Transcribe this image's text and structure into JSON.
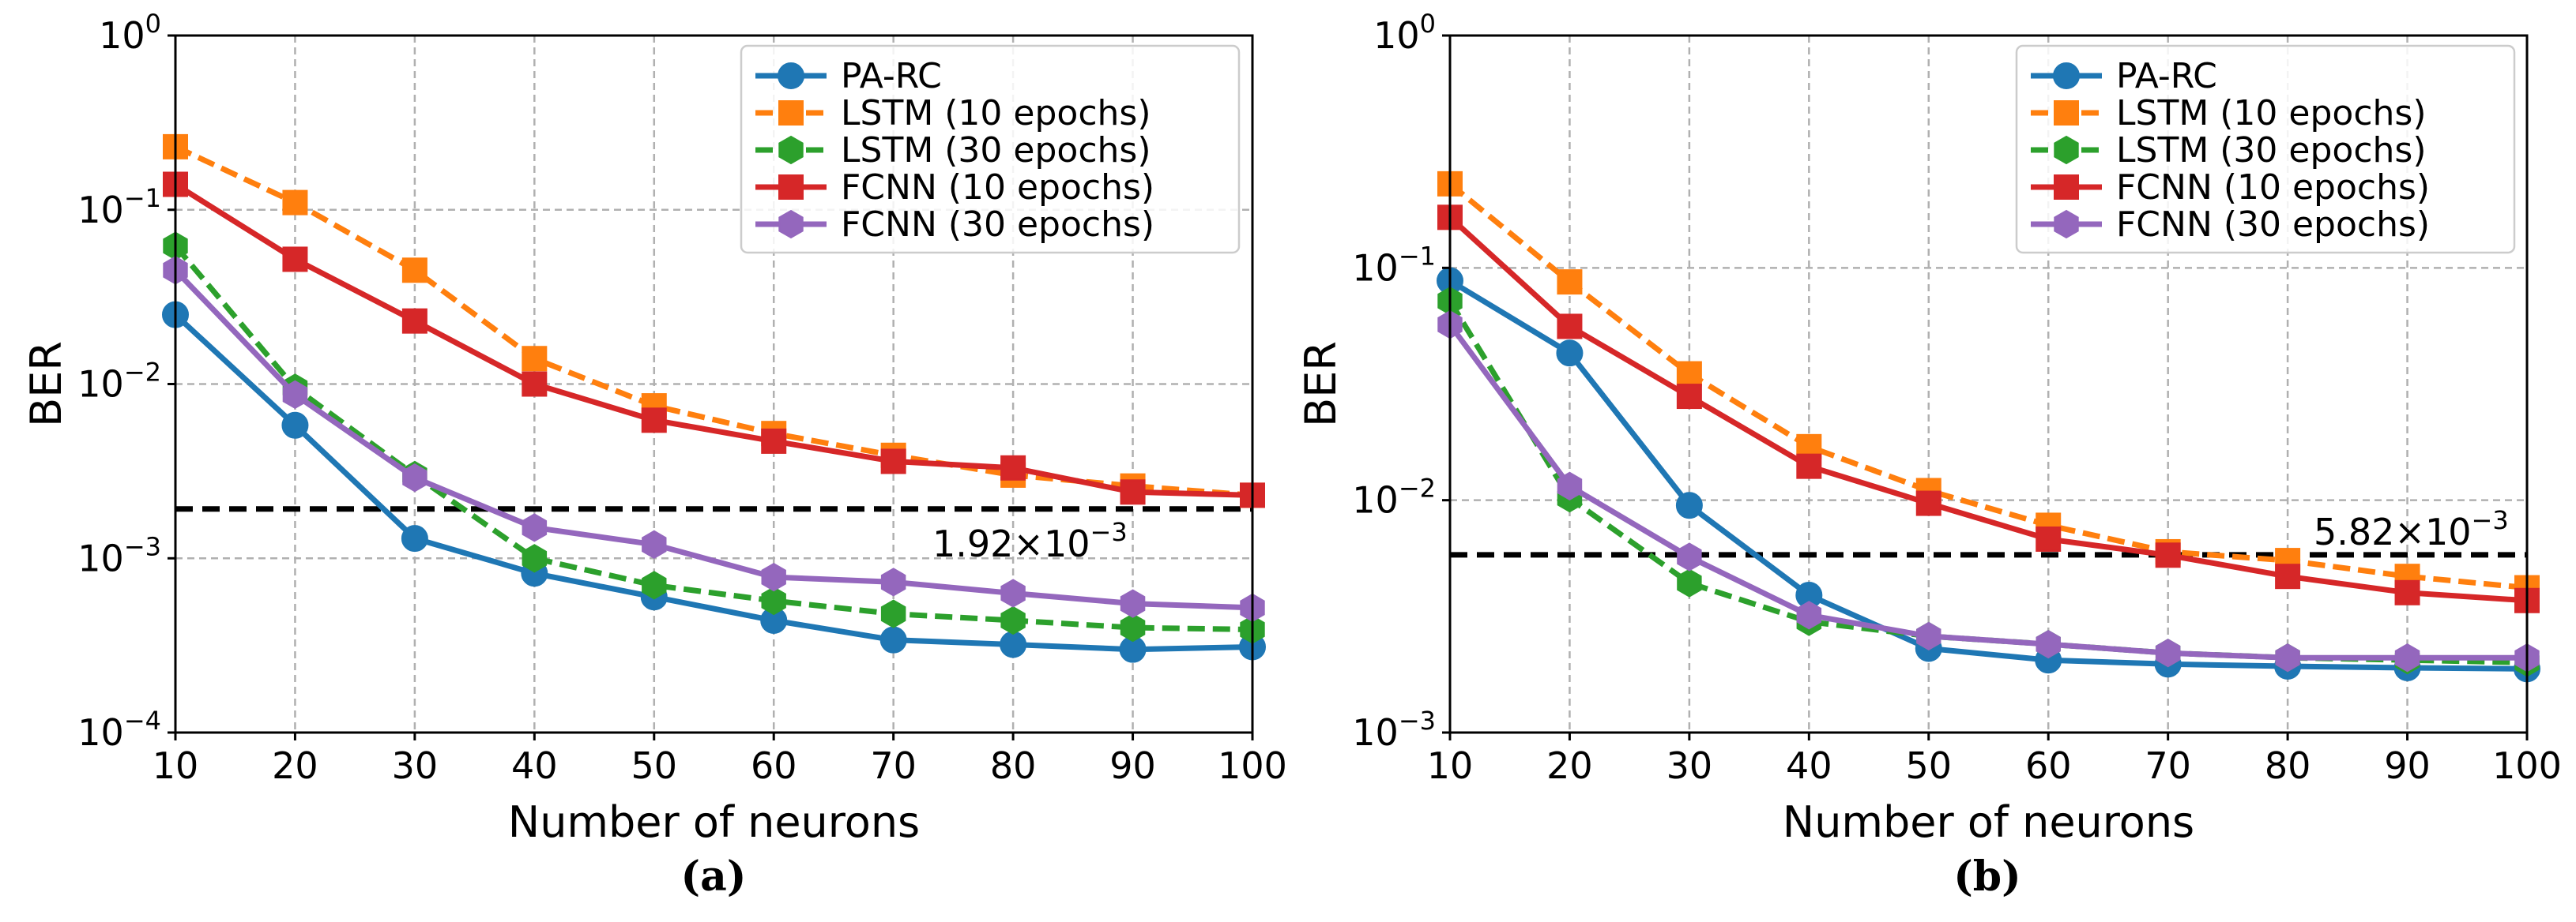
{
  "colors": {
    "pa_rc": "#1f77b4",
    "lstm10": "#ff7f0e",
    "lstm30": "#2ca02c",
    "fcnn10": "#d62728",
    "fcnn30": "#9467bd",
    "threshold": "#000000"
  },
  "chart_data": [
    {
      "type": "line",
      "caption": "(a)",
      "xlabel": "Number of neurons",
      "ylabel": "BER",
      "yscale": "log",
      "xlim": [
        10,
        100
      ],
      "ylim": [
        0.0001,
        1
      ],
      "x": [
        10,
        20,
        30,
        40,
        50,
        60,
        70,
        80,
        90,
        100
      ],
      "xticks": [
        "10",
        "20",
        "30",
        "40",
        "50",
        "60",
        "70",
        "80",
        "90",
        "100"
      ],
      "yticks": [
        {
          "base": "10",
          "exp": "0"
        },
        {
          "base": "10",
          "exp": "−1"
        },
        {
          "base": "10",
          "exp": "−2"
        },
        {
          "base": "10",
          "exp": "−3"
        },
        {
          "base": "10",
          "exp": "−4"
        }
      ],
      "grid": true,
      "legend_position": "top-right",
      "threshold": {
        "value": 0.00192,
        "label_base": "1.92×10",
        "label_exp": "−3"
      },
      "series": [
        {
          "name": "PA-RC",
          "style": "solid",
          "marker": "circle",
          "color_key": "pa_rc",
          "values": [
            0.025,
            0.0058,
            0.0013,
            0.00082,
            0.0006,
            0.00044,
            0.00034,
            0.00032,
            0.0003,
            0.00031
          ]
        },
        {
          "name": "LSTM (10 epochs)",
          "style": "dashed",
          "marker": "square",
          "color_key": "lstm10",
          "values": [
            0.23,
            0.11,
            0.045,
            0.014,
            0.0075,
            0.0052,
            0.0039,
            0.003,
            0.0026,
            0.0023
          ]
        },
        {
          "name": "LSTM (30 epochs)",
          "style": "dashed",
          "marker": "hexagon",
          "color_key": "lstm30",
          "values": [
            0.062,
            0.0095,
            0.003,
            0.001,
            0.0007,
            0.00057,
            0.00048,
            0.00044,
            0.0004,
            0.00039
          ]
        },
        {
          "name": "FCNN (10 epochs)",
          "style": "solid",
          "marker": "square",
          "color_key": "fcnn10",
          "values": [
            0.14,
            0.052,
            0.023,
            0.01,
            0.0062,
            0.0047,
            0.0036,
            0.0033,
            0.0024,
            0.0023
          ]
        },
        {
          "name": "FCNN (30 epochs)",
          "style": "solid",
          "marker": "hexagon",
          "color_key": "fcnn30",
          "values": [
            0.045,
            0.0087,
            0.0029,
            0.0015,
            0.0012,
            0.00078,
            0.00073,
            0.00063,
            0.00055,
            0.00052
          ]
        }
      ]
    },
    {
      "type": "line",
      "caption": "(b)",
      "xlabel": "Number of neurons",
      "ylabel": "BER",
      "yscale": "log",
      "xlim": [
        10,
        100
      ],
      "ylim": [
        0.001,
        1
      ],
      "x": [
        10,
        20,
        30,
        40,
        50,
        60,
        70,
        80,
        90,
        100
      ],
      "xticks": [
        "10",
        "20",
        "30",
        "40",
        "50",
        "60",
        "70",
        "80",
        "90",
        "100"
      ],
      "yticks": [
        {
          "base": "10",
          "exp": "0"
        },
        {
          "base": "10",
          "exp": "−1"
        },
        {
          "base": "10",
          "exp": "−2"
        },
        {
          "base": "10",
          "exp": "−3"
        }
      ],
      "grid": true,
      "legend_position": "top-right",
      "threshold": {
        "value": 0.00582,
        "label_base": "5.82×10",
        "label_exp": "−3"
      },
      "series": [
        {
          "name": "PA-RC",
          "style": "solid",
          "marker": "circle",
          "color_key": "pa_rc",
          "values": [
            0.088,
            0.043,
            0.0095,
            0.0039,
            0.0023,
            0.00205,
            0.00197,
            0.00193,
            0.0019,
            0.00188
          ]
        },
        {
          "name": "LSTM (10 epochs)",
          "style": "dashed",
          "marker": "square",
          "color_key": "lstm10",
          "values": [
            0.23,
            0.087,
            0.035,
            0.017,
            0.011,
            0.0078,
            0.006,
            0.0055,
            0.0047,
            0.0042
          ]
        },
        {
          "name": "LSTM (30 epochs)",
          "style": "dashed",
          "marker": "hexagon",
          "color_key": "lstm30",
          "values": [
            0.072,
            0.0102,
            0.0044,
            0.003,
            0.0026,
            0.0024,
            0.0022,
            0.0021,
            0.00205,
            0.002
          ]
        },
        {
          "name": "FCNN (10 epochs)",
          "style": "solid",
          "marker": "square",
          "color_key": "fcnn10",
          "values": [
            0.165,
            0.056,
            0.028,
            0.014,
            0.0097,
            0.0068,
            0.0058,
            0.0047,
            0.004,
            0.0037
          ]
        },
        {
          "name": "FCNN (30 epochs)",
          "style": "solid",
          "marker": "hexagon",
          "color_key": "fcnn30",
          "values": [
            0.057,
            0.0115,
            0.0057,
            0.0032,
            0.0026,
            0.0024,
            0.0022,
            0.0021,
            0.0021,
            0.0021
          ]
        }
      ]
    }
  ]
}
